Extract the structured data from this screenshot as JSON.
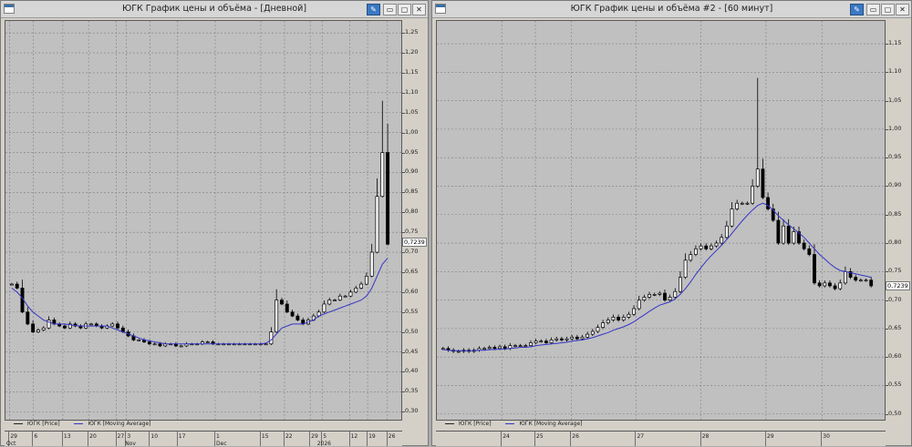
{
  "windows": [
    {
      "title": "ЮГК График цены и объёма - [Дневной]",
      "legend": {
        "price": "ЮГК [Price]",
        "ma": "ЮГК [Moving Average]"
      },
      "last_price": "0,7239",
      "y_ticks": [
        "1,25",
        "1,20",
        "1,15",
        "1,10",
        "1,05",
        "1,00",
        "0,95",
        "0,90",
        "0,85",
        "0,80",
        "0,75",
        "0,70",
        "0,65",
        "0,60",
        "0,55",
        "0,50",
        "0,45",
        "0,40",
        "0,35",
        "0,30"
      ],
      "x_ticks": [
        "29",
        "6",
        "13",
        "20",
        "27",
        "3",
        "10",
        "17",
        "1",
        "15",
        "22",
        "29",
        "5",
        "12",
        "19",
        "26"
      ],
      "months": [
        "Oct",
        "Nov",
        "Dec",
        "2026"
      ]
    },
    {
      "title": "ЮГК График цены и объёма #2 - [60 минут]",
      "legend": {
        "price": "ЮГК [Price]",
        "ma": "ЮГК [Moving Average]"
      },
      "last_price": "0,7239",
      "y_ticks": [
        "1,15",
        "1,10",
        "1,05",
        "1,00",
        "0,95",
        "0,90",
        "0,85",
        "0,80",
        "0,75",
        "0,70",
        "0,65",
        "0,60",
        "0,55",
        "0,50"
      ],
      "x_ticks": [
        "24",
        "25",
        "26",
        "27",
        "28",
        "29",
        "30"
      ]
    }
  ],
  "colors": {
    "ma_line": "#3535c8",
    "candle_up": "#ffffff",
    "candle_down": "#000000",
    "grid": "#808080",
    "plot_bg": "#c0c0c0"
  },
  "chart_data": [
    {
      "type": "line",
      "title": "ЮГК График цены и объёма - [Дневной]",
      "ylim": [
        0.28,
        1.28
      ],
      "price_series": [
        0.62,
        0.61,
        0.55,
        0.52,
        0.5,
        0.505,
        0.51,
        0.53,
        0.52,
        0.515,
        0.51,
        0.52,
        0.515,
        0.51,
        0.52,
        0.52,
        0.515,
        0.51,
        0.515,
        0.52,
        0.51,
        0.5,
        0.49,
        0.48,
        0.48,
        0.475,
        0.47,
        0.47,
        0.465,
        0.47,
        0.47,
        0.465,
        0.465,
        0.47,
        0.47,
        0.47,
        0.475,
        0.475,
        0.47,
        0.47,
        0.47,
        0.47,
        0.47,
        0.47,
        0.47,
        0.47,
        0.47,
        0.47,
        0.47,
        0.5,
        0.58,
        0.57,
        0.55,
        0.54,
        0.53,
        0.52,
        0.53,
        0.54,
        0.55,
        0.57,
        0.58,
        0.58,
        0.59,
        0.59,
        0.6,
        0.61,
        0.62,
        0.64,
        0.7,
        0.84,
        0.95,
        0.72
      ],
      "series": [
        {
          "name": "ЮГК [Moving Average]",
          "values": [
            0.61,
            0.6,
            0.585,
            0.565,
            0.55,
            0.54,
            0.53,
            0.525,
            0.52,
            0.52,
            0.52,
            0.518,
            0.516,
            0.515,
            0.515,
            0.515,
            0.515,
            0.515,
            0.515,
            0.51,
            0.505,
            0.5,
            0.495,
            0.49,
            0.485,
            0.48,
            0.478,
            0.475,
            0.473,
            0.47,
            0.47,
            0.47,
            0.47,
            0.47,
            0.47,
            0.47,
            0.47,
            0.47,
            0.47,
            0.47,
            0.47,
            0.47,
            0.47,
            0.47,
            0.47,
            0.47,
            0.47,
            0.47,
            0.472,
            0.48,
            0.495,
            0.51,
            0.515,
            0.52,
            0.52,
            0.52,
            0.525,
            0.53,
            0.54,
            0.545,
            0.55,
            0.555,
            0.56,
            0.565,
            0.57,
            0.575,
            0.58,
            0.59,
            0.61,
            0.64,
            0.67,
            0.685
          ]
        }
      ]
    },
    {
      "type": "line",
      "title": "ЮГК График цены и объёма #2 - [60 минут]",
      "ylim": [
        0.49,
        1.19
      ],
      "price_series": [
        0.615,
        0.612,
        0.61,
        0.61,
        0.612,
        0.61,
        0.612,
        0.615,
        0.615,
        0.617,
        0.615,
        0.618,
        0.615,
        0.62,
        0.62,
        0.62,
        0.62,
        0.625,
        0.628,
        0.628,
        0.625,
        0.63,
        0.632,
        0.63,
        0.632,
        0.635,
        0.632,
        0.635,
        0.64,
        0.645,
        0.652,
        0.66,
        0.665,
        0.67,
        0.665,
        0.67,
        0.675,
        0.685,
        0.7,
        0.705,
        0.71,
        0.71,
        0.712,
        0.7,
        0.705,
        0.715,
        0.74,
        0.77,
        0.78,
        0.79,
        0.795,
        0.79,
        0.795,
        0.8,
        0.81,
        0.83,
        0.86,
        0.87,
        0.87,
        0.87,
        0.9,
        0.93,
        0.88,
        0.86,
        0.84,
        0.8,
        0.83,
        0.8,
        0.82,
        0.8,
        0.79,
        0.78,
        0.73,
        0.725,
        0.73,
        0.725,
        0.72,
        0.73,
        0.75,
        0.74,
        0.735,
        0.735,
        0.735,
        0.725
      ],
      "series": [
        {
          "name": "ЮГК [Moving Average]",
          "values": [
            0.613,
            0.612,
            0.611,
            0.611,
            0.611,
            0.611,
            0.611,
            0.612,
            0.612,
            0.613,
            0.613,
            0.614,
            0.614,
            0.615,
            0.616,
            0.617,
            0.617,
            0.618,
            0.62,
            0.621,
            0.622,
            0.623,
            0.624,
            0.625,
            0.626,
            0.628,
            0.629,
            0.63,
            0.632,
            0.634,
            0.637,
            0.64,
            0.643,
            0.647,
            0.65,
            0.653,
            0.657,
            0.662,
            0.668,
            0.674,
            0.68,
            0.686,
            0.691,
            0.694,
            0.697,
            0.702,
            0.71,
            0.72,
            0.732,
            0.745,
            0.757,
            0.768,
            0.778,
            0.787,
            0.796,
            0.806,
            0.817,
            0.828,
            0.839,
            0.849,
            0.858,
            0.866,
            0.87,
            0.866,
            0.858,
            0.848,
            0.84,
            0.832,
            0.825,
            0.818,
            0.81,
            0.8,
            0.79,
            0.78,
            0.772,
            0.764,
            0.757,
            0.752,
            0.75,
            0.748,
            0.746,
            0.744,
            0.742,
            0.74
          ]
        }
      ]
    }
  ]
}
